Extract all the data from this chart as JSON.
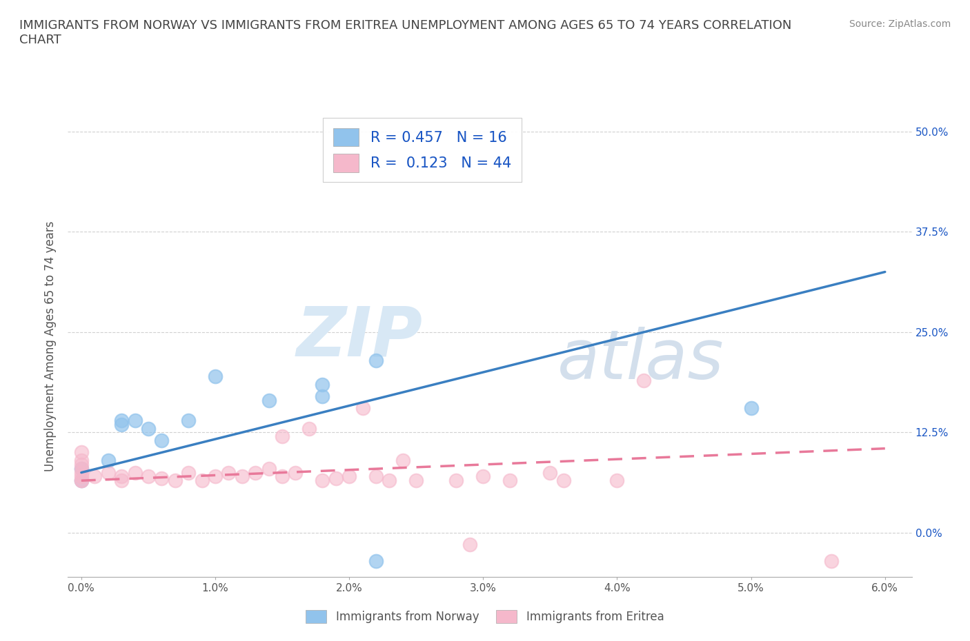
{
  "title": "IMMIGRANTS FROM NORWAY VS IMMIGRANTS FROM ERITREA UNEMPLOYMENT AMONG AGES 65 TO 74 YEARS CORRELATION\nCHART",
  "source": "Source: ZipAtlas.com",
  "ylabel_label": "Unemployment Among Ages 65 to 74 years",
  "xlim": [
    -0.001,
    0.062
  ],
  "ylim": [
    -0.055,
    0.52
  ],
  "xticks": [
    0.0,
    0.01,
    0.02,
    0.03,
    0.04,
    0.05,
    0.06
  ],
  "xtick_labels": [
    "0.0%",
    "1.0%",
    "2.0%",
    "3.0%",
    "4.0%",
    "5.0%",
    "6.0%"
  ],
  "yticks": [
    0.0,
    0.125,
    0.25,
    0.375,
    0.5
  ],
  "ytick_labels": [
    "0.0%",
    "12.5%",
    "25.0%",
    "37.5%",
    "50.0%"
  ],
  "norway_color": "#91c3ec",
  "eritrea_color": "#f5b8cb",
  "norway_line_color": "#3a7fc1",
  "eritrea_line_color": "#e8799a",
  "norway_R": 0.457,
  "norway_N": 16,
  "eritrea_R": 0.123,
  "eritrea_N": 44,
  "norway_scatter_x": [
    0.0,
    0.0,
    0.002,
    0.003,
    0.003,
    0.004,
    0.005,
    0.006,
    0.008,
    0.01,
    0.014,
    0.018,
    0.018,
    0.022,
    0.022,
    0.05
  ],
  "norway_scatter_y": [
    0.065,
    0.08,
    0.09,
    0.135,
    0.14,
    0.14,
    0.13,
    0.115,
    0.14,
    0.195,
    0.165,
    0.185,
    0.17,
    0.215,
    -0.035,
    0.155
  ],
  "eritrea_scatter_x": [
    0.0,
    0.0,
    0.0,
    0.0,
    0.0,
    0.0,
    0.0,
    0.0,
    0.001,
    0.002,
    0.003,
    0.003,
    0.004,
    0.005,
    0.006,
    0.007,
    0.008,
    0.009,
    0.01,
    0.011,
    0.012,
    0.013,
    0.014,
    0.015,
    0.015,
    0.016,
    0.017,
    0.018,
    0.019,
    0.02,
    0.021,
    0.022,
    0.023,
    0.024,
    0.025,
    0.028,
    0.029,
    0.03,
    0.032,
    0.035,
    0.036,
    0.04,
    0.042,
    0.056
  ],
  "eritrea_scatter_y": [
    0.065,
    0.07,
    0.075,
    0.08,
    0.085,
    0.09,
    0.1,
    0.065,
    0.07,
    0.075,
    0.065,
    0.07,
    0.075,
    0.07,
    0.068,
    0.065,
    0.075,
    0.065,
    0.07,
    0.075,
    0.07,
    0.075,
    0.08,
    0.12,
    0.07,
    0.075,
    0.13,
    0.065,
    0.068,
    0.07,
    0.155,
    0.07,
    0.065,
    0.09,
    0.065,
    0.065,
    -0.015,
    0.07,
    0.065,
    0.075,
    0.065,
    0.065,
    0.19,
    -0.035
  ],
  "norway_line_x": [
    0.0,
    0.06
  ],
  "norway_line_y": [
    0.075,
    0.325
  ],
  "eritrea_line_x": [
    0.0,
    0.06
  ],
  "eritrea_line_y": [
    0.065,
    0.105
  ],
  "watermark_zip": "ZIP",
  "watermark_atlas": "atlas",
  "background_color": "#ffffff",
  "grid_color": "#d0d0d0",
  "legend_label_norway": "Immigrants from Norway",
  "legend_label_eritrea": "Immigrants from Eritrea",
  "legend_r_color": "#1a56c4",
  "legend_n_color": "#1a56c4",
  "tick_label_color": "#555555",
  "ylabel_color": "#555555",
  "title_color": "#444444",
  "source_color": "#888888"
}
